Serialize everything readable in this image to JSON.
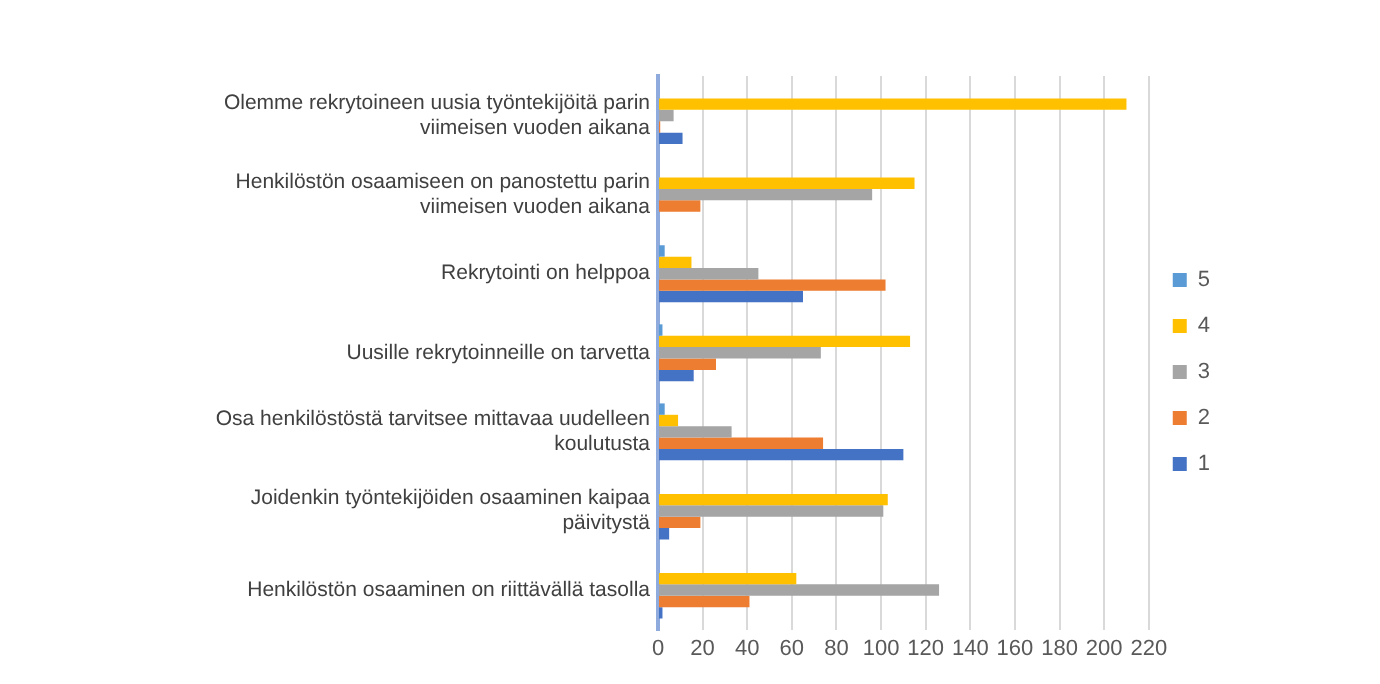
{
  "chart_data": {
    "type": "bar",
    "orientation": "horizontal",
    "categories": [
      "Olemme rekrytoineen uusia työntekijöitä parin viimeisen vuoden aikana",
      "Henkilöstön osaamiseen on panostettu parin viimeisen vuoden aikana",
      "Rekrytointi on helppoa",
      "Uusille rekrytoinneille on tarvetta",
      "Osa henkilöstöstä tarvitsee mittavaa uudelleen koulutusta",
      "Joidenkin työntekijöiden osaaminen kaipaa päivitystä",
      "Henkilöstön osaaminen on riittävällä tasolla"
    ],
    "series": [
      {
        "name": "1",
        "color": "#4472c4",
        "values": [
          11,
          0,
          65,
          16,
          110,
          5,
          2
        ]
      },
      {
        "name": "2",
        "color": "#ed7d31",
        "values": [
          1,
          19,
          102,
          26,
          74,
          19,
          41
        ]
      },
      {
        "name": "3",
        "color": "#a5a5a5",
        "values": [
          7,
          96,
          45,
          73,
          33,
          101,
          126
        ]
      },
      {
        "name": "4",
        "color": "#ffc000",
        "values": [
          210,
          115,
          15,
          113,
          9,
          103,
          62
        ]
      },
      {
        "name": "5",
        "color": "#5b9bd5",
        "values": [
          0,
          0,
          3,
          2,
          3,
          0,
          0
        ]
      }
    ],
    "xlim": [
      0,
      220
    ],
    "xticks": [
      0,
      20,
      40,
      60,
      80,
      100,
      120,
      140,
      160,
      180,
      200,
      220
    ],
    "grid": "x",
    "legend": "right"
  }
}
